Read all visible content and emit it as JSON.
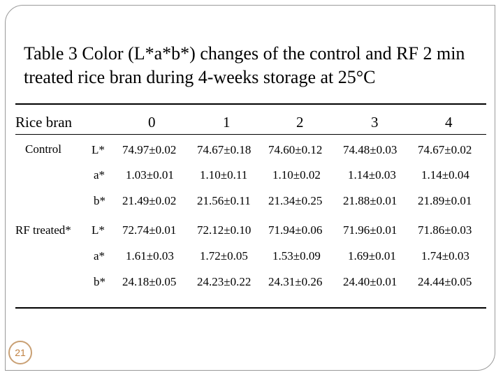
{
  "slide": {
    "title": "Table 3 Color (L*a*b*) changes of the control and RF 2 min treated rice bran during 4-weeks storage at 25°C",
    "page_number": "21"
  },
  "table": {
    "header": {
      "row_label": "Rice bran",
      "weeks": [
        "0",
        "1",
        "2",
        "3",
        "4"
      ]
    },
    "groups": [
      {
        "name": "Control",
        "rows": [
          {
            "param": "L*",
            "values": [
              "74.97±0.02",
              "74.67±0.18",
              "74.60±0.12",
              "74.48±0.03",
              "74.67±0.02"
            ]
          },
          {
            "param": "a*",
            "values": [
              "1.03±0.01",
              "1.10±0.11",
              "1.10±0.02",
              "1.14±0.03",
              "1.14±0.04"
            ]
          },
          {
            "param": "b*",
            "values": [
              "21.49±0.02",
              "21.56±0.11",
              "21.34±0.25",
              "21.88±0.01",
              "21.89±0.01"
            ]
          }
        ]
      },
      {
        "name": "RF treated*",
        "rows": [
          {
            "param": "L*",
            "values": [
              "72.74±0.01",
              "72.12±0.10",
              "71.94±0.06",
              "71.96±0.01",
              "71.86±0.03"
            ]
          },
          {
            "param": "a*",
            "values": [
              "1.61±0.03",
              "1.72±0.05",
              "1.53±0.09",
              "1.69±0.01",
              "1.74±0.03"
            ]
          },
          {
            "param": "b*",
            "values": [
              "24.18±0.05",
              "24.23±0.22",
              "24.31±0.26",
              "24.40±0.01",
              "24.44±0.05"
            ]
          }
        ]
      }
    ]
  }
}
